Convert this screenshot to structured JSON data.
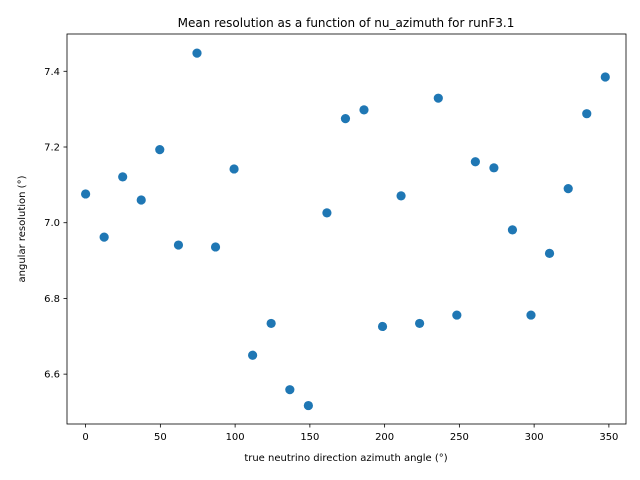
{
  "chart_data": {
    "type": "scatter",
    "title": "Mean resolution as a function of nu_azimuth for runF3.1",
    "xlabel": "true neutrino direction azimuth angle (°)",
    "ylabel": "angular resolution (°)",
    "xlim": [
      -12.45,
      361.45
    ],
    "ylim": [
      6.4683,
      7.4985
    ],
    "xticks": [
      0,
      50,
      100,
      150,
      200,
      250,
      300,
      350
    ],
    "xtick_labels": [
      "0",
      "50",
      "100",
      "150",
      "200",
      "250",
      "300",
      "350"
    ],
    "yticks": [
      6.6,
      6.8,
      7.0,
      7.2,
      7.4
    ],
    "ytick_labels": [
      "6.6",
      "6.8",
      "7.0",
      "7.2",
      "7.4"
    ],
    "grid": false,
    "marker_color": "#1f77b4",
    "series": [
      {
        "x": [
          0,
          12.4,
          24.8,
          37.2,
          49.6,
          62.1,
          74.5,
          86.9,
          99.3,
          111.7,
          124.1,
          136.6,
          149.0,
          161.4,
          173.8,
          186.2,
          198.6,
          211.0,
          223.4,
          235.9,
          248.3,
          260.7,
          273.1,
          285.5,
          297.9,
          310.3,
          322.8,
          335.2,
          347.6
        ],
        "y": [
          7.076,
          6.962,
          7.121,
          7.06,
          7.193,
          6.941,
          7.448,
          6.936,
          7.142,
          6.65,
          6.734,
          6.559,
          6.517,
          7.026,
          7.275,
          7.298,
          6.726,
          7.071,
          6.734,
          7.329,
          6.756,
          7.161,
          7.145,
          6.981,
          6.756,
          6.919,
          7.09,
          7.288,
          7.385
        ]
      }
    ]
  }
}
